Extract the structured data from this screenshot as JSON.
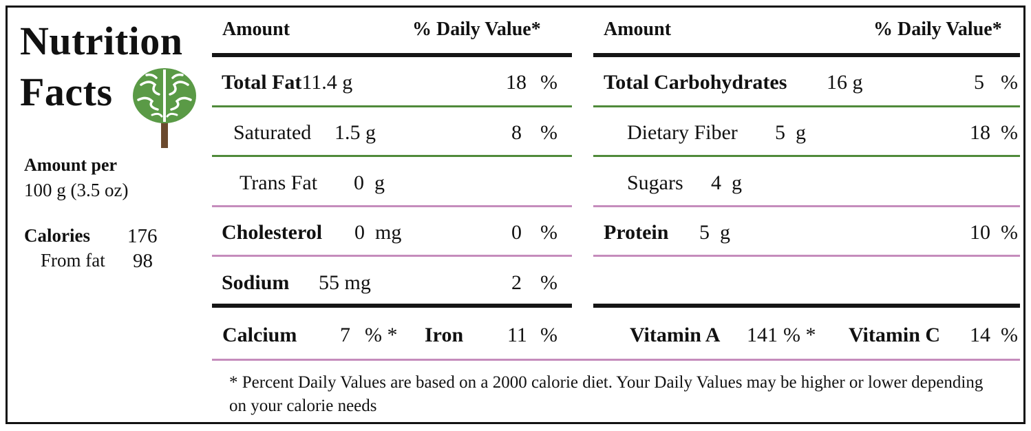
{
  "title": {
    "line1": "Nutrition",
    "line2": "Facts"
  },
  "serving": {
    "label": "Amount per",
    "size": "100 g (3.5 oz)"
  },
  "calories": {
    "label": "Calories",
    "value": "176",
    "from_fat_label": "From fat",
    "from_fat_value": "98"
  },
  "left_table": {
    "header_amount": "Amount",
    "header_dv": "% Daily Value*",
    "rows": [
      {
        "label": "Total Fat",
        "amount": "11.4 g",
        "dv": "18",
        "pct": "%"
      },
      {
        "label": "Saturated",
        "amount": "1.5 g",
        "dv": "8",
        "pct": "%"
      },
      {
        "label": "Trans Fat",
        "amount": "0  g",
        "dv": "",
        "pct": ""
      },
      {
        "label": "Cholesterol",
        "amount": "0  mg",
        "dv": "0",
        "pct": "%"
      },
      {
        "label": "Sodium",
        "amount": "55 mg",
        "dv": "2",
        "pct": "%"
      }
    ]
  },
  "right_table": {
    "header_amount": "Amount",
    "header_dv": "% Daily Value*",
    "rows": [
      {
        "label": "Total Carbohydrates",
        "amount": "16 g",
        "dv": "5",
        "pct": "%"
      },
      {
        "label": "Dietary Fiber",
        "amount": "5  g",
        "dv": "18",
        "pct": "%"
      },
      {
        "label": "Sugars",
        "amount": "4  g",
        "dv": "",
        "pct": ""
      },
      {
        "label": "Protein",
        "amount": "5  g",
        "dv": "10",
        "pct": "%"
      }
    ]
  },
  "vitamins": {
    "calcium_label": "Calcium",
    "calcium_value": "7",
    "calcium_pct": "% *",
    "iron_label": "Iron",
    "iron_value": "11",
    "iron_pct": "%",
    "vitamin_a_label": "Vitamin A",
    "vitamin_a_value": "141",
    "vitamin_a_pct": "% *",
    "vitamin_c_label": "Vitamin C",
    "vitamin_c_value": "14",
    "vitamin_c_pct": "%"
  },
  "footnote": "* Percent Daily Values are based on a 2000 calorie diet. Your Daily Values may be higher or lower depending on your calorie needs",
  "colors": {
    "border": "#111111",
    "green_rule": "#4f8a3a",
    "pink_rule": "#c58cbc",
    "tree_leaf": "#5a9a46",
    "tree_trunk": "#6b4a2e"
  },
  "icons": {
    "logo": "tree-brain-icon"
  }
}
